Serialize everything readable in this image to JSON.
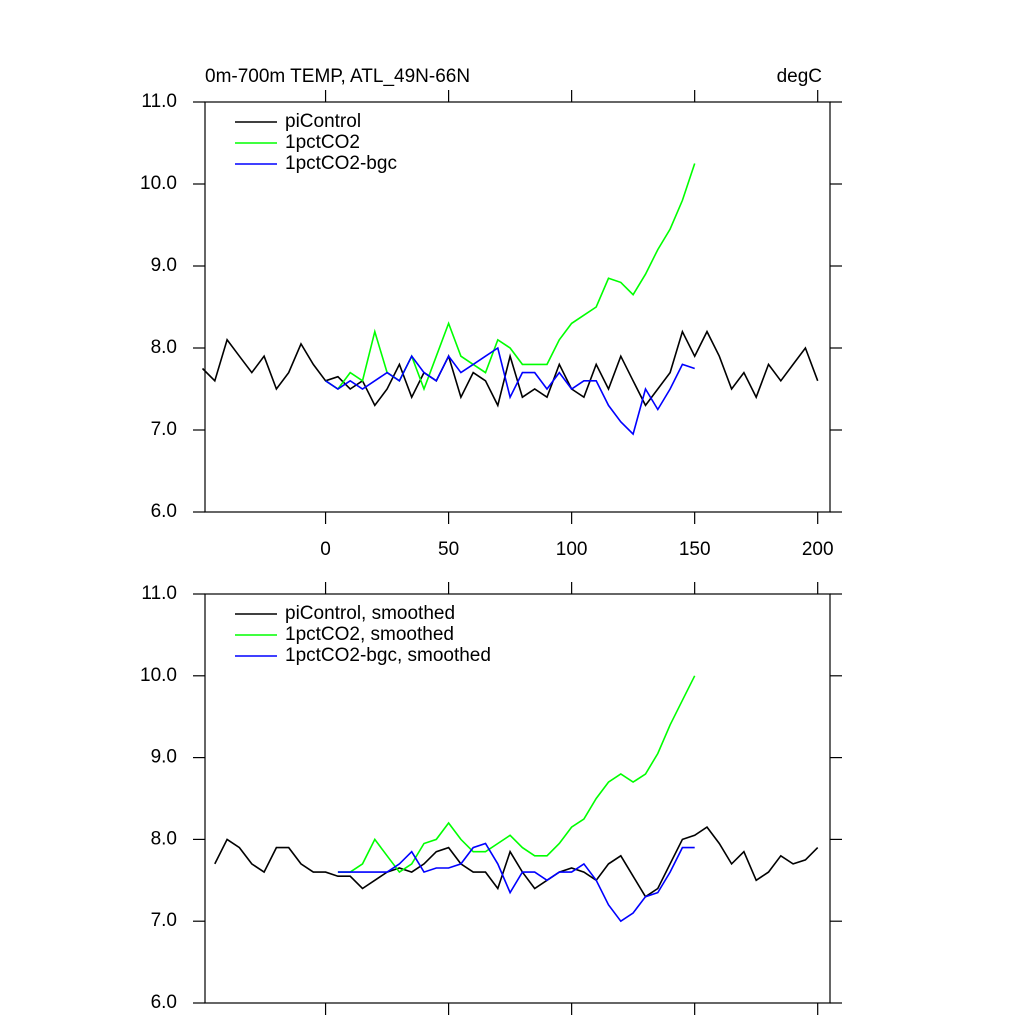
{
  "chart_data": [
    {
      "type": "line",
      "title": "0m-700m TEMP, ATL_49N-66N",
      "subtitle": "degC",
      "xlim": [
        -49,
        205
      ],
      "ylim": [
        6,
        11
      ],
      "xticks": [
        0,
        50,
        100,
        150,
        200
      ],
      "yticks": [
        {
          "value": 6,
          "label": "6.0"
        },
        {
          "value": 7,
          "label": "7.0"
        },
        {
          "value": 8,
          "label": "8.0"
        },
        {
          "value": 9,
          "label": "9.0"
        },
        {
          "value": 10,
          "label": "10.0"
        },
        {
          "value": 11,
          "label": "11.0"
        }
      ],
      "legend": "upper left",
      "x": [
        -50,
        -45,
        -40,
        -35,
        -30,
        -25,
        -20,
        -15,
        -10,
        -5,
        0,
        5,
        10,
        15,
        20,
        25,
        30,
        35,
        40,
        45,
        50,
        55,
        60,
        65,
        70,
        75,
        80,
        85,
        90,
        95,
        100,
        105,
        110,
        115,
        120,
        125,
        130,
        135,
        140,
        145,
        150,
        155,
        160,
        165,
        170,
        175,
        180,
        185,
        190,
        195,
        200
      ],
      "series": [
        {
          "name": "piControl",
          "color": "#000000",
          "values": [
            7.75,
            7.6,
            8.1,
            7.9,
            7.7,
            7.9,
            7.5,
            7.7,
            8.05,
            7.8,
            7.6,
            7.65,
            7.5,
            7.6,
            7.3,
            7.5,
            7.8,
            7.4,
            7.7,
            7.6,
            7.9,
            7.4,
            7.7,
            7.6,
            7.3,
            7.9,
            7.4,
            7.5,
            7.4,
            7.8,
            7.5,
            7.4,
            7.8,
            7.5,
            7.9,
            7.6,
            7.3,
            7.5,
            7.7,
            8.2,
            7.9,
            8.2,
            7.9,
            7.5,
            7.7,
            7.4,
            7.8,
            7.6,
            7.8,
            8.0,
            7.6
          ]
        },
        {
          "name": "1pctCO2",
          "color": "#00ff00",
          "values": [
            null,
            null,
            null,
            null,
            null,
            null,
            null,
            null,
            null,
            null,
            7.6,
            7.5,
            7.7,
            7.6,
            8.2,
            7.7,
            7.6,
            7.9,
            7.5,
            7.9,
            8.3,
            7.9,
            7.8,
            7.7,
            8.1,
            8.0,
            7.8,
            7.8,
            7.8,
            8.1,
            8.3,
            8.4,
            8.5,
            8.85,
            8.8,
            8.65,
            8.9,
            9.2,
            9.45,
            9.8,
            10.25,
            null,
            null,
            null,
            null,
            null,
            null,
            null,
            null,
            null,
            null
          ]
        },
        {
          "name": "1pctCO2-bgc",
          "color": "#0000ff",
          "values": [
            null,
            null,
            null,
            null,
            null,
            null,
            null,
            null,
            null,
            null,
            7.6,
            7.5,
            7.6,
            7.5,
            7.6,
            7.7,
            7.6,
            7.9,
            7.7,
            7.6,
            7.9,
            7.7,
            7.8,
            7.9,
            8.0,
            7.4,
            7.7,
            7.7,
            7.5,
            7.7,
            7.5,
            7.6,
            7.6,
            7.3,
            7.1,
            6.95,
            7.5,
            7.25,
            7.5,
            7.8,
            7.75,
            null,
            null,
            null,
            null,
            null,
            null,
            null,
            null,
            null,
            null
          ]
        }
      ]
    },
    {
      "type": "line",
      "xlim": [
        -49,
        205
      ],
      "ylim": [
        6,
        11
      ],
      "xticks": [
        0,
        50,
        100,
        150,
        200
      ],
      "yticks": [
        {
          "value": 6,
          "label": "6.0"
        },
        {
          "value": 7,
          "label": "7.0"
        },
        {
          "value": 8,
          "label": "8.0"
        },
        {
          "value": 9,
          "label": "9.0"
        },
        {
          "value": 10,
          "label": "10.0"
        },
        {
          "value": 11,
          "label": "11.0"
        }
      ],
      "legend": "upper left",
      "x": [
        -50,
        -45,
        -40,
        -35,
        -30,
        -25,
        -20,
        -15,
        -10,
        -5,
        0,
        5,
        10,
        15,
        20,
        25,
        30,
        35,
        40,
        45,
        50,
        55,
        60,
        65,
        70,
        75,
        80,
        85,
        90,
        95,
        100,
        105,
        110,
        115,
        120,
        125,
        130,
        135,
        140,
        145,
        150,
        155,
        160,
        165,
        170,
        175,
        180,
        185,
        190,
        195,
        200
      ],
      "series": [
        {
          "name": "piControl, smoothed",
          "color": "#000000",
          "values": [
            null,
            7.7,
            8.0,
            7.9,
            7.7,
            7.6,
            7.9,
            7.9,
            7.7,
            7.6,
            7.6,
            7.55,
            7.55,
            7.4,
            7.5,
            7.6,
            7.65,
            7.6,
            7.7,
            7.85,
            7.9,
            7.7,
            7.6,
            7.6,
            7.4,
            7.85,
            7.6,
            7.4,
            7.5,
            7.6,
            7.65,
            7.6,
            7.5,
            7.7,
            7.8,
            7.55,
            7.3,
            7.4,
            7.7,
            8.0,
            8.05,
            8.15,
            7.95,
            7.7,
            7.85,
            7.5,
            7.6,
            7.8,
            7.7,
            7.75,
            7.9
          ]
        },
        {
          "name": "1pctCO2, smoothed",
          "color": "#00ff00",
          "values": [
            null,
            null,
            null,
            null,
            null,
            null,
            null,
            null,
            null,
            null,
            null,
            7.6,
            7.6,
            7.7,
            8.0,
            7.8,
            7.6,
            7.7,
            7.95,
            8.0,
            8.2,
            8.0,
            7.85,
            7.85,
            7.95,
            8.05,
            7.9,
            7.8,
            7.8,
            7.95,
            8.15,
            8.25,
            8.5,
            8.7,
            8.8,
            8.7,
            8.8,
            9.05,
            9.4,
            9.7,
            10.0,
            null,
            null,
            null,
            null,
            null,
            null,
            null,
            null,
            null,
            null
          ]
        },
        {
          "name": "1pctCO2-bgc, smoothed",
          "color": "#0000ff",
          "values": [
            null,
            null,
            null,
            null,
            null,
            null,
            null,
            null,
            null,
            null,
            null,
            7.6,
            7.6,
            7.6,
            7.6,
            7.6,
            7.7,
            7.85,
            7.6,
            7.65,
            7.65,
            7.7,
            7.9,
            7.95,
            7.7,
            7.35,
            7.6,
            7.6,
            7.5,
            7.6,
            7.6,
            7.7,
            7.5,
            7.2,
            7.0,
            7.1,
            7.3,
            7.35,
            7.6,
            7.9,
            7.9,
            null,
            null,
            null,
            null,
            null,
            null,
            null,
            null,
            null,
            null
          ]
        }
      ]
    }
  ]
}
